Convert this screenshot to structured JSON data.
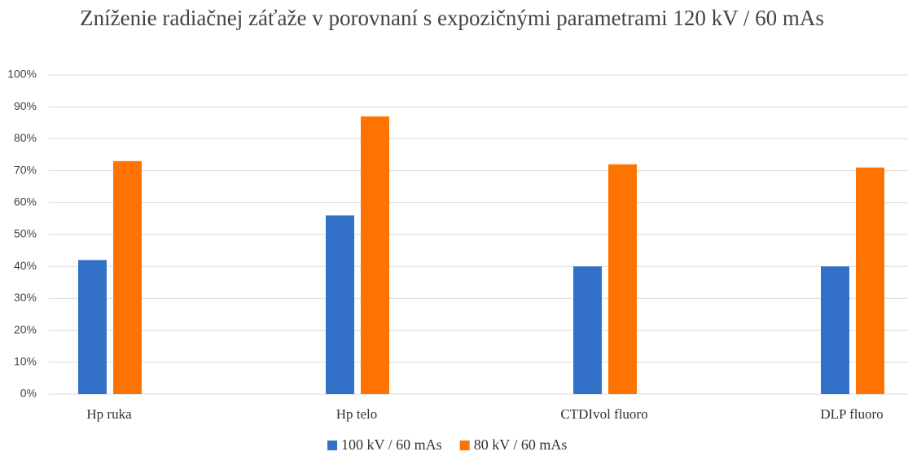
{
  "chart_data": {
    "type": "bar",
    "title": "Zníženie radiačnej záťaže v porovnaní s expozičnými parametrami 120 kV / 60 mAs",
    "categories": [
      "Hp ruka",
      "Hp telo",
      "CTDIvol fluoro",
      "DLP fluoro"
    ],
    "series": [
      {
        "name": "100 kV / 60 mAs",
        "color": "#3371c9",
        "values": [
          42,
          56,
          40,
          40
        ]
      },
      {
        "name": "80 kV / 60 mAs",
        "color": "#ff7300",
        "values": [
          73,
          87,
          72,
          71
        ]
      }
    ],
    "ylim": [
      0,
      100
    ],
    "yticks": [
      {
        "value": 0,
        "label": "0%"
      },
      {
        "value": 10,
        "label": "10%"
      },
      {
        "value": 20,
        "label": "20%"
      },
      {
        "value": 30,
        "label": "30%"
      },
      {
        "value": 40,
        "label": "40%"
      },
      {
        "value": 50,
        "label": "50%"
      },
      {
        "value": 60,
        "label": "60%"
      },
      {
        "value": 70,
        "label": "70%"
      },
      {
        "value": 80,
        "label": "80%"
      },
      {
        "value": 90,
        "label": "90%"
      },
      {
        "value": 100,
        "label": "100%"
      }
    ],
    "grid": true,
    "legend": "bottom"
  }
}
